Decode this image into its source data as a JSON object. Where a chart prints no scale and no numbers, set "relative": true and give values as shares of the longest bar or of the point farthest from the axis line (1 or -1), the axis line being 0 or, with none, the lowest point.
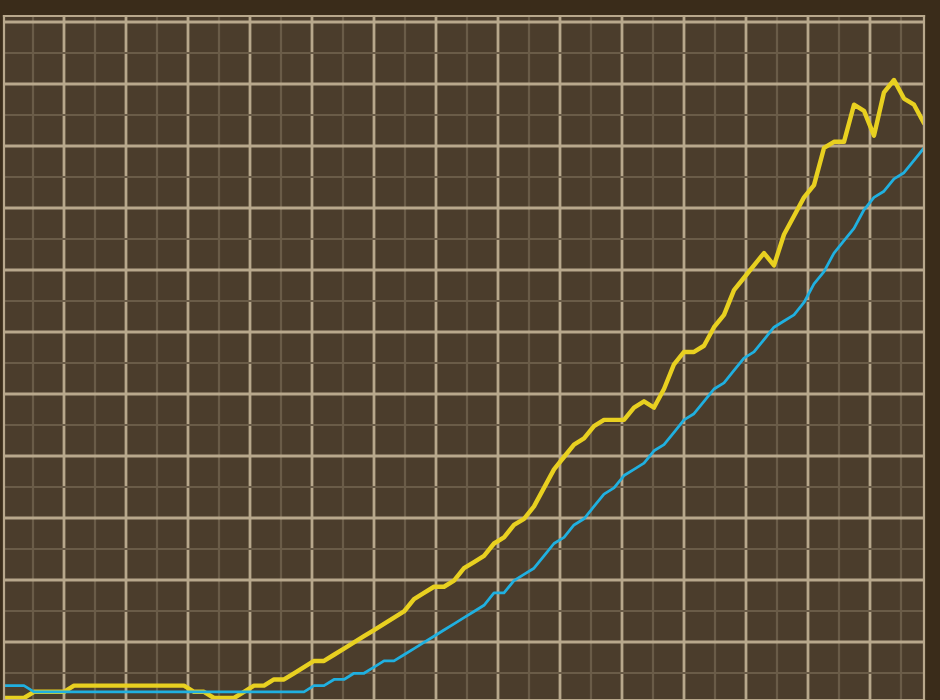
{
  "chart_data": {
    "type": "line",
    "relative": true,
    "grid": true,
    "legend": false,
    "marker": "none",
    "line_style": "solid",
    "categories": [
      null,
      null,
      null,
      null,
      null,
      null,
      null,
      null,
      null,
      null,
      null,
      null,
      null,
      null,
      null,
      null,
      null,
      null,
      null,
      null,
      null,
      null,
      null,
      null,
      null,
      null,
      null,
      null,
      null,
      null,
      null,
      null,
      null,
      null,
      null,
      null,
      null,
      null,
      null,
      null,
      null,
      null,
      null,
      null,
      null,
      null,
      null,
      null,
      null,
      null,
      null,
      null,
      null,
      null,
      null,
      null,
      null,
      null,
      null,
      null,
      null,
      null,
      null,
      null,
      null,
      null,
      null,
      null,
      null,
      null,
      null,
      null,
      null,
      null,
      null,
      null,
      null,
      null,
      null,
      null,
      null,
      null,
      null,
      null,
      null,
      null,
      null,
      null,
      null,
      null,
      null,
      null,
      null
    ],
    "series": [
      {
        "color": "#e8d020",
        "values": [
          0.0,
          0.0,
          0.0,
          0.01,
          0.01,
          0.01,
          0.01,
          0.02,
          0.02,
          0.02,
          0.02,
          0.02,
          0.02,
          0.02,
          0.02,
          0.02,
          0.02,
          0.02,
          0.02,
          0.01,
          0.01,
          0.0,
          0.0,
          0.0,
          0.01,
          0.02,
          0.02,
          0.03,
          0.03,
          0.04,
          0.05,
          0.06,
          0.06,
          0.07,
          0.08,
          0.09,
          0.1,
          0.11,
          0.12,
          0.13,
          0.14,
          0.16,
          0.17,
          0.18,
          0.18,
          0.19,
          0.21,
          0.22,
          0.23,
          0.25,
          0.26,
          0.28,
          0.29,
          0.31,
          0.34,
          0.37,
          0.39,
          0.41,
          0.42,
          0.44,
          0.45,
          0.45,
          0.45,
          0.47,
          0.48,
          0.47,
          0.5,
          0.54,
          0.56,
          0.56,
          0.57,
          0.6,
          0.62,
          0.66,
          0.68,
          0.7,
          0.72,
          0.7,
          0.75,
          0.78,
          0.81,
          0.83,
          0.89,
          0.9,
          0.9,
          0.96,
          0.95,
          0.91,
          0.98,
          1.0,
          0.97,
          0.96,
          0.93
        ]
      },
      {
        "color": "#20b0e0",
        "values": [
          0.02,
          0.02,
          0.02,
          0.01,
          0.01,
          0.01,
          0.01,
          0.01,
          0.01,
          0.01,
          0.01,
          0.01,
          0.01,
          0.01,
          0.01,
          0.01,
          0.01,
          0.01,
          0.01,
          0.01,
          0.01,
          0.01,
          0.01,
          0.01,
          0.01,
          0.01,
          0.01,
          0.01,
          0.01,
          0.01,
          0.01,
          0.02,
          0.02,
          0.03,
          0.03,
          0.04,
          0.04,
          0.05,
          0.06,
          0.06,
          0.07,
          0.08,
          0.09,
          0.1,
          0.11,
          0.12,
          0.13,
          0.14,
          0.15,
          0.17,
          0.17,
          0.19,
          0.2,
          0.21,
          0.23,
          0.25,
          0.26,
          0.28,
          0.29,
          0.31,
          0.33,
          0.34,
          0.36,
          0.37,
          0.38,
          0.4,
          0.41,
          0.43,
          0.45,
          0.46,
          0.48,
          0.5,
          0.51,
          0.53,
          0.55,
          0.56,
          0.58,
          0.6,
          0.61,
          0.62,
          0.64,
          0.67,
          0.69,
          0.72,
          0.74,
          0.76,
          0.79,
          0.81,
          0.82,
          0.84,
          0.85,
          0.87,
          0.89
        ]
      }
    ]
  }
}
